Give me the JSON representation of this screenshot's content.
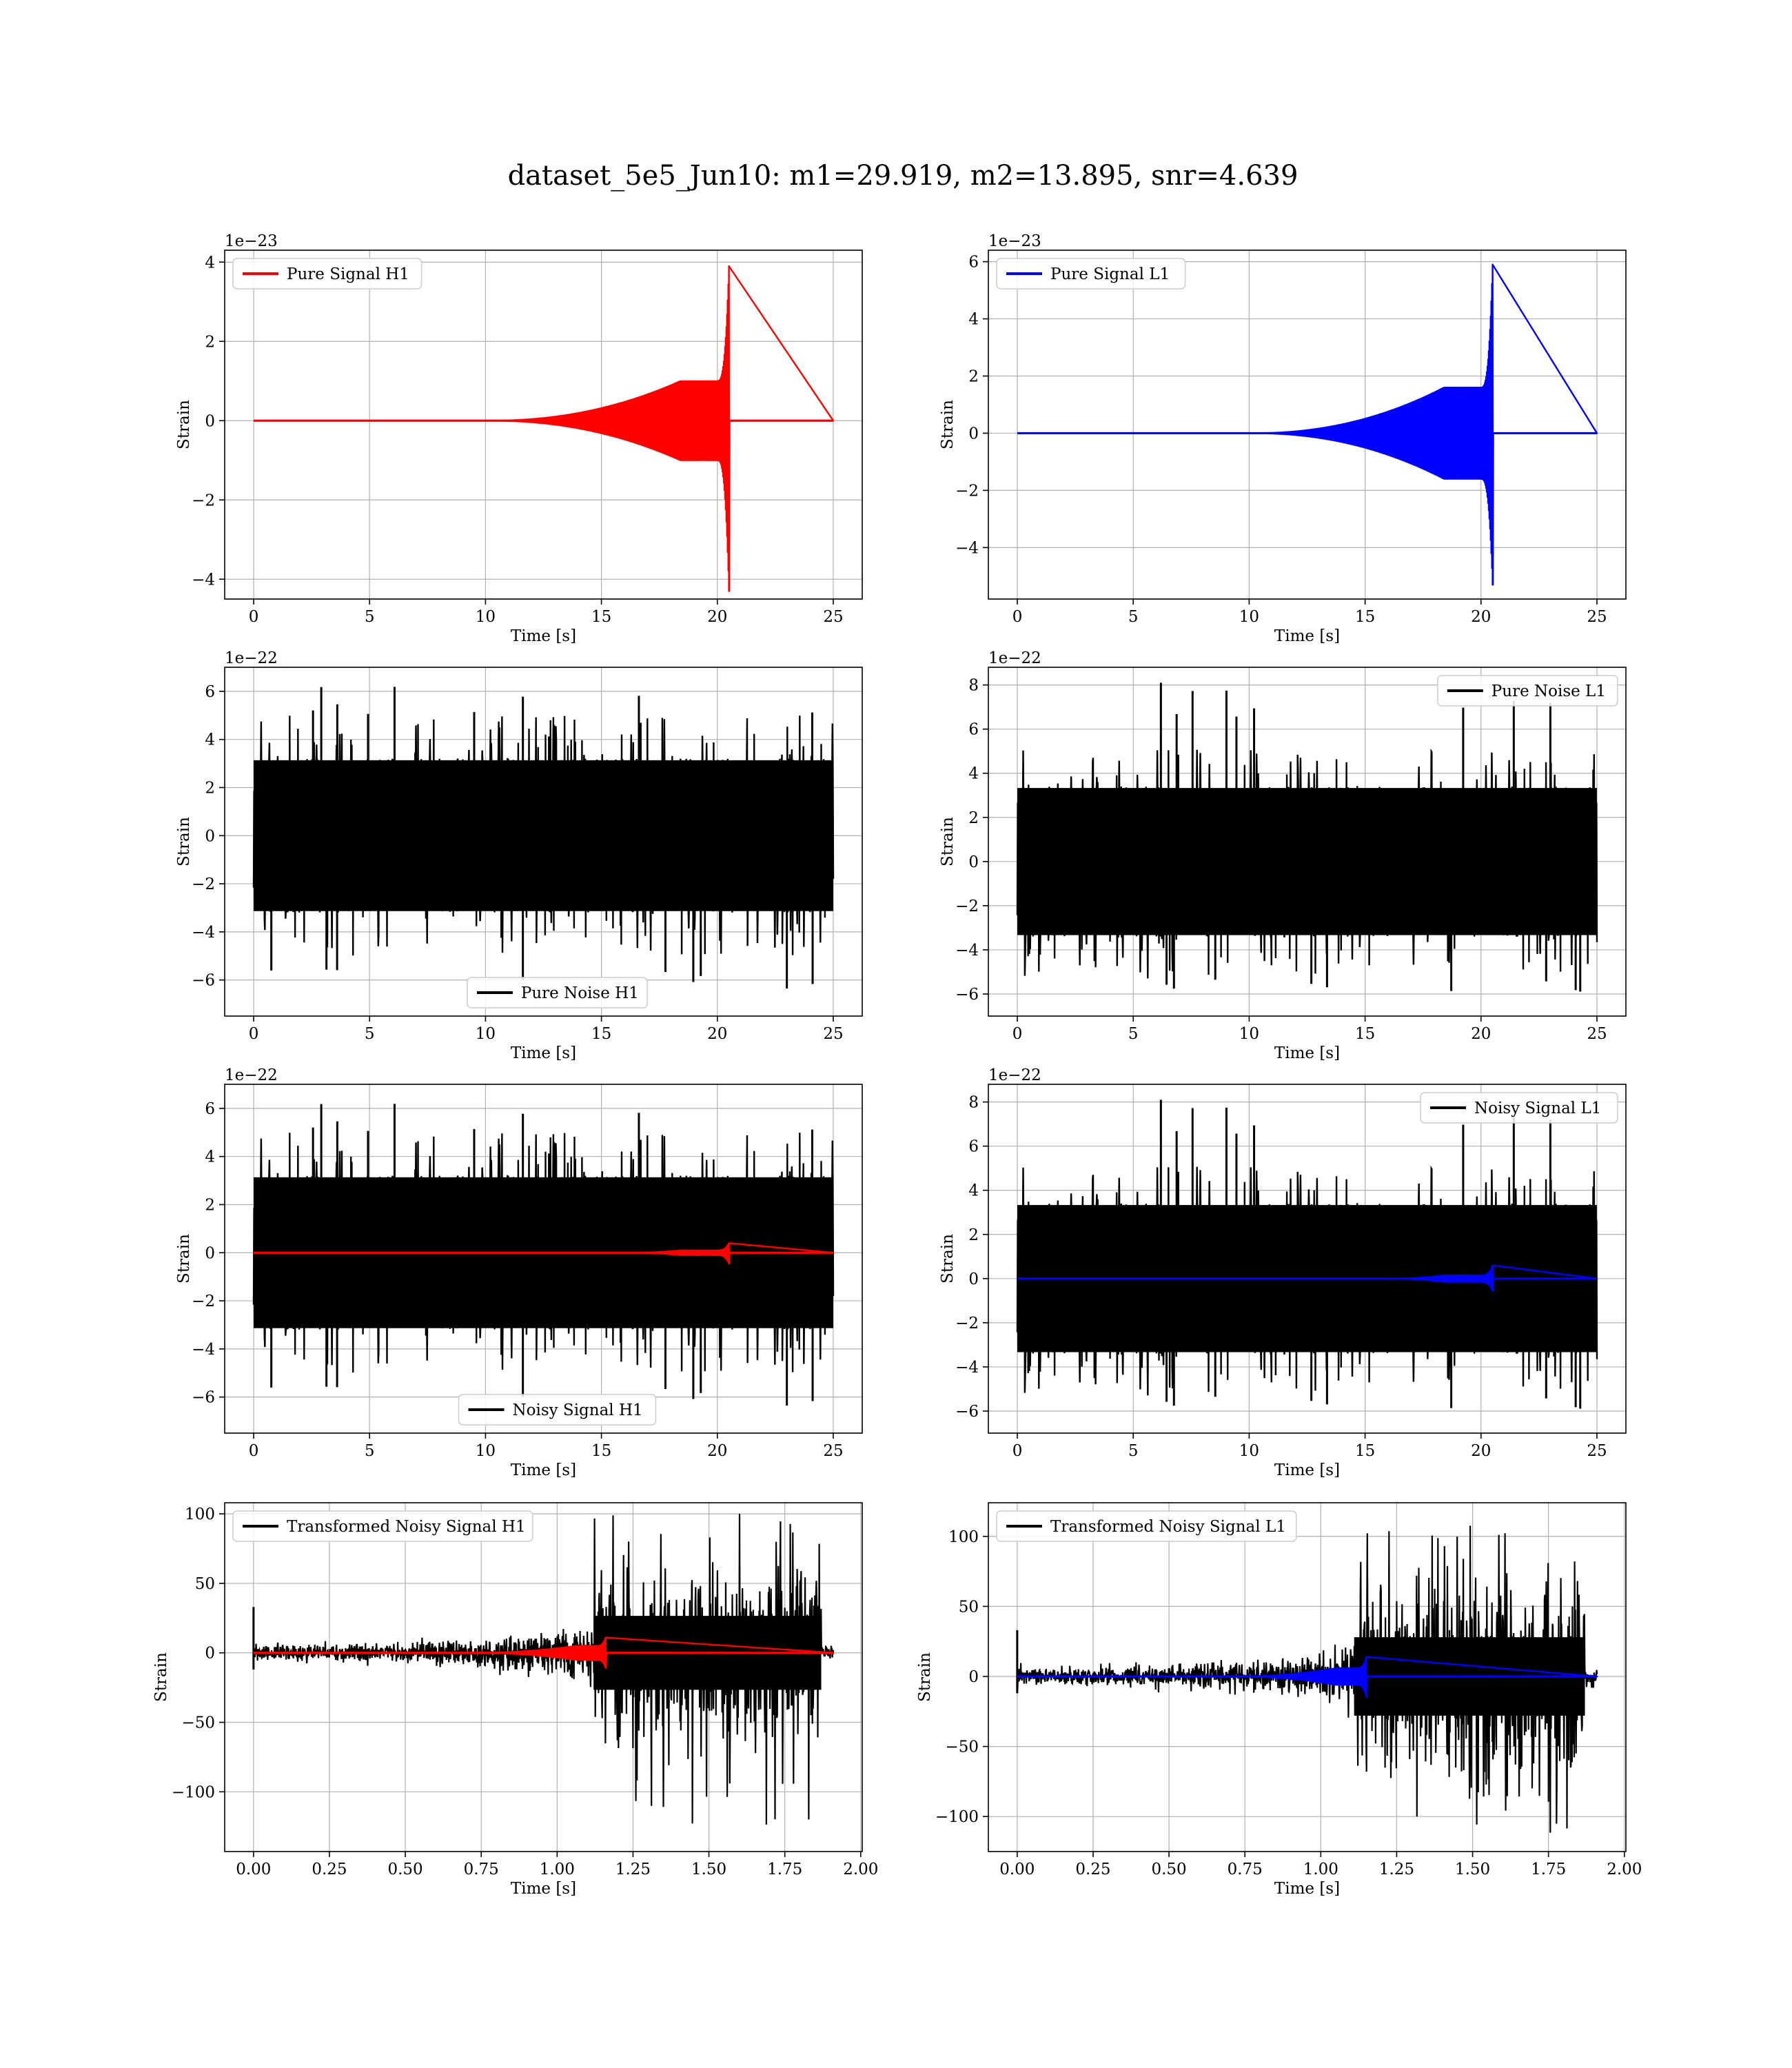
{
  "figure": {
    "title": "dataset_5e5_Jun10: m1=29.919, m2=13.895, snr=4.639"
  },
  "colors": {
    "h1_signal": "#ff0000",
    "l1_signal": "#0000ff",
    "noise": "#000000",
    "grid": "#b0b0b0"
  },
  "chart_data": [
    {
      "id": "pure-signal-h1",
      "type": "line",
      "xlabel": "Time [s]",
      "ylabel": "Strain",
      "offset_text": "1e−23",
      "xlim": [
        -1.25,
        26.25
      ],
      "ylim": [
        -4.5,
        4.3
      ],
      "xticks": [
        0,
        5,
        10,
        15,
        20,
        25
      ],
      "xtick_labels": [
        "0",
        "5",
        "10",
        "15",
        "20",
        "25"
      ],
      "yticks": [
        -4,
        -2,
        0,
        2,
        4
      ],
      "ytick_labels": [
        "−4",
        "−2",
        "0",
        "2",
        "4"
      ],
      "grid": true,
      "legend": {
        "position": "upper-left",
        "entries": [
          {
            "label": "Pure Signal H1",
            "color": "#ff0000"
          }
        ]
      },
      "series": [
        {
          "name": "Pure Signal H1",
          "color": "#ff0000",
          "kind": "chirp",
          "x_start": 0,
          "x_end": 25,
          "signal_start": 10,
          "plateau_start": 18.4,
          "plateau_end": 20.0,
          "merger": 20.5,
          "plateau_amp": 1.0,
          "peak_pos": 3.9,
          "peak_neg": -4.3
        }
      ]
    },
    {
      "id": "pure-signal-l1",
      "type": "line",
      "xlabel": "Time [s]",
      "ylabel": "Strain",
      "offset_text": "1e−23",
      "xlim": [
        -1.25,
        26.25
      ],
      "ylim": [
        -5.8,
        6.4
      ],
      "xticks": [
        0,
        5,
        10,
        15,
        20,
        25
      ],
      "xtick_labels": [
        "0",
        "5",
        "10",
        "15",
        "20",
        "25"
      ],
      "yticks": [
        -4,
        -2,
        0,
        2,
        4,
        6
      ],
      "ytick_labels": [
        "−4",
        "−2",
        "0",
        "2",
        "4",
        "6"
      ],
      "grid": true,
      "legend": {
        "position": "upper-left",
        "entries": [
          {
            "label": "Pure Signal L1",
            "color": "#0000ff"
          }
        ]
      },
      "series": [
        {
          "name": "Pure Signal L1",
          "color": "#0000ff",
          "kind": "chirp",
          "x_start": 0,
          "x_end": 25,
          "signal_start": 10,
          "plateau_start": 18.4,
          "plateau_end": 20.0,
          "merger": 20.5,
          "plateau_amp": 1.6,
          "peak_pos": 5.9,
          "peak_neg": -5.3
        }
      ]
    },
    {
      "id": "pure-noise-h1",
      "type": "line",
      "xlabel": "Time [s]",
      "ylabel": "Strain",
      "offset_text": "1e−22",
      "xlim": [
        -1.25,
        26.25
      ],
      "ylim": [
        -7.5,
        7.0
      ],
      "xticks": [
        0,
        5,
        10,
        15,
        20,
        25
      ],
      "xtick_labels": [
        "0",
        "5",
        "10",
        "15",
        "20",
        "25"
      ],
      "yticks": [
        -6,
        -4,
        -2,
        0,
        2,
        4,
        6
      ],
      "ytick_labels": [
        "−6",
        "−4",
        "−2",
        "0",
        "2",
        "4",
        "6"
      ],
      "grid": true,
      "legend": {
        "position": "lower-center",
        "entries": [
          {
            "label": "Pure Noise H1",
            "color": "#000000"
          }
        ]
      },
      "series": [
        {
          "name": "Pure Noise H1",
          "color": "#000000",
          "kind": "noise",
          "x_start": 0,
          "x_end": 25,
          "band": 3.2,
          "tail": 1.5,
          "max": 6.3,
          "min": -6.6,
          "seed": 11
        }
      ]
    },
    {
      "id": "pure-noise-l1",
      "type": "line",
      "xlabel": "Time [s]",
      "ylabel": "Strain",
      "offset_text": "1e−22",
      "xlim": [
        -1.25,
        26.25
      ],
      "ylim": [
        -7.0,
        8.8
      ],
      "xticks": [
        0,
        5,
        10,
        15,
        20,
        25
      ],
      "xtick_labels": [
        "0",
        "5",
        "10",
        "15",
        "20",
        "25"
      ],
      "yticks": [
        -6,
        -4,
        -2,
        0,
        2,
        4,
        6,
        8
      ],
      "ytick_labels": [
        "−6",
        "−4",
        "−2",
        "0",
        "2",
        "4",
        "6",
        "8"
      ],
      "grid": true,
      "legend": {
        "position": "upper-right",
        "entries": [
          {
            "label": "Pure Noise L1",
            "color": "#000000"
          }
        ]
      },
      "series": [
        {
          "name": "Pure Noise L1",
          "color": "#000000",
          "kind": "noise",
          "x_start": 0,
          "x_end": 25,
          "band": 3.4,
          "tail": 1.6,
          "max": 8.1,
          "min": -6.3,
          "seed": 23
        }
      ]
    },
    {
      "id": "noisy-signal-h1",
      "type": "line",
      "xlabel": "Time [s]",
      "ylabel": "Strain",
      "offset_text": "1e−22",
      "xlim": [
        -1.25,
        26.25
      ],
      "ylim": [
        -7.5,
        7.0
      ],
      "xticks": [
        0,
        5,
        10,
        15,
        20,
        25
      ],
      "xtick_labels": [
        "0",
        "5",
        "10",
        "15",
        "20",
        "25"
      ],
      "yticks": [
        -6,
        -4,
        -2,
        0,
        2,
        4,
        6
      ],
      "ytick_labels": [
        "−6",
        "−4",
        "−2",
        "0",
        "2",
        "4",
        "6"
      ],
      "grid": true,
      "legend": {
        "position": "lower-center",
        "entries": [
          {
            "label": "Noisy Signal H1",
            "color": "#000000"
          }
        ]
      },
      "series": [
        {
          "name": "Noisy Signal H1",
          "color": "#000000",
          "kind": "noise",
          "x_start": 0,
          "x_end": 25,
          "band": 3.2,
          "tail": 1.5,
          "max": 6.3,
          "min": -6.6,
          "seed": 11
        },
        {
          "color": "#ff0000",
          "kind": "chirp",
          "x_start": 0,
          "x_end": 25,
          "signal_start": 16,
          "plateau_start": 18.4,
          "plateau_end": 20.0,
          "merger": 20.5,
          "plateau_amp": 0.1,
          "peak_pos": 0.4,
          "peak_neg": -0.45
        }
      ]
    },
    {
      "id": "noisy-signal-l1",
      "type": "line",
      "xlabel": "Time [s]",
      "ylabel": "Strain",
      "offset_text": "1e−22",
      "xlim": [
        -1.25,
        26.25
      ],
      "ylim": [
        -7.0,
        8.8
      ],
      "xticks": [
        0,
        5,
        10,
        15,
        20,
        25
      ],
      "xtick_labels": [
        "0",
        "5",
        "10",
        "15",
        "20",
        "25"
      ],
      "yticks": [
        -6,
        -4,
        -2,
        0,
        2,
        4,
        6,
        8
      ],
      "ytick_labels": [
        "−6",
        "−4",
        "−2",
        "0",
        "2",
        "4",
        "6",
        "8"
      ],
      "grid": true,
      "legend": {
        "position": "upper-right",
        "entries": [
          {
            "label": "Noisy Signal L1",
            "color": "#000000"
          }
        ]
      },
      "series": [
        {
          "name": "Noisy Signal L1",
          "color": "#000000",
          "kind": "noise",
          "x_start": 0,
          "x_end": 25,
          "band": 3.4,
          "tail": 1.6,
          "max": 8.1,
          "min": -6.3,
          "seed": 23
        },
        {
          "color": "#0000ff",
          "kind": "chirp",
          "x_start": 0,
          "x_end": 25,
          "signal_start": 16,
          "plateau_start": 18.4,
          "plateau_end": 20.0,
          "merger": 20.5,
          "plateau_amp": 0.15,
          "peak_pos": 0.6,
          "peak_neg": -0.55
        }
      ]
    },
    {
      "id": "transformed-noisy-signal-h1",
      "type": "line",
      "xlabel": "Time [s]",
      "ylabel": "Strain",
      "offset_text": "",
      "xlim": [
        -0.095,
        2.005
      ],
      "ylim": [
        -143,
        108
      ],
      "xticks": [
        0.0,
        0.25,
        0.5,
        0.75,
        1.0,
        1.25,
        1.5,
        1.75,
        2.0
      ],
      "xtick_labels": [
        "0.00",
        "0.25",
        "0.50",
        "0.75",
        "1.00",
        "1.25",
        "1.50",
        "1.75",
        "2.00"
      ],
      "yticks": [
        -100,
        -50,
        0,
        50,
        100
      ],
      "ytick_labels": [
        "−100",
        "−50",
        "0",
        "50",
        "100"
      ],
      "grid": true,
      "legend": {
        "position": "upper-left",
        "entries": [
          {
            "label": "Transformed Noisy Signal H1",
            "color": "#000000"
          }
        ]
      },
      "series": [
        {
          "name": "Transformed Noisy Signal H1",
          "color": "#000000",
          "kind": "whitened",
          "x_start": 0,
          "x_end": 1.91,
          "jump_at": 1.12,
          "quiet_end": 1.87,
          "pre_amp": 4,
          "pre_growth": 8,
          "post_amp": 38,
          "max": 100,
          "min": -131,
          "seed": 31
        },
        {
          "color": "#ff0000",
          "kind": "chirp",
          "x_start": 0,
          "x_end": 1.91,
          "signal_start": 0.7,
          "plateau_start": 1.06,
          "plateau_end": 1.13,
          "merger": 1.16,
          "plateau_amp": 5,
          "peak_pos": 11,
          "peak_neg": -11
        }
      ]
    },
    {
      "id": "transformed-noisy-signal-l1",
      "type": "line",
      "xlabel": "Time [s]",
      "ylabel": "Strain",
      "offset_text": "",
      "xlim": [
        -0.095,
        2.005
      ],
      "ylim": [
        -125,
        124
      ],
      "xticks": [
        0.0,
        0.25,
        0.5,
        0.75,
        1.0,
        1.25,
        1.5,
        1.75,
        2.0
      ],
      "xtick_labels": [
        "0.00",
        "0.25",
        "0.50",
        "0.75",
        "1.00",
        "1.25",
        "1.50",
        "1.75",
        "2.00"
      ],
      "yticks": [
        -100,
        -50,
        0,
        50,
        100
      ],
      "ytick_labels": [
        "−100",
        "−50",
        "0",
        "50",
        "100"
      ],
      "grid": true,
      "legend": {
        "position": "upper-left",
        "entries": [
          {
            "label": "Transformed Noisy Signal L1",
            "color": "#000000"
          }
        ]
      },
      "series": [
        {
          "name": "Transformed Noisy Signal L1",
          "color": "#000000",
          "kind": "whitened",
          "x_start": 0,
          "x_end": 1.91,
          "jump_at": 1.11,
          "quiet_end": 1.87,
          "pre_amp": 4,
          "pre_growth": 8,
          "post_amp": 40,
          "max": 110,
          "min": -112,
          "seed": 47
        },
        {
          "color": "#0000ff",
          "kind": "chirp",
          "x_start": 0,
          "x_end": 1.91,
          "signal_start": 0.7,
          "plateau_start": 1.05,
          "plateau_end": 1.12,
          "merger": 1.15,
          "plateau_amp": 6,
          "peak_pos": 14,
          "peak_neg": -15
        }
      ]
    }
  ]
}
